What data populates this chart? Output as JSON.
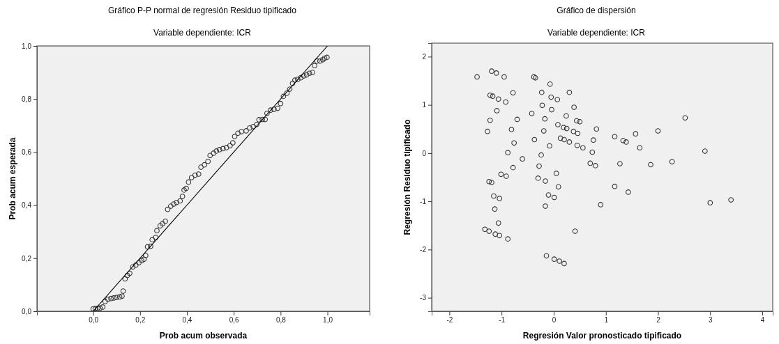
{
  "chart_data": [
    {
      "type": "scatter",
      "title": "Gráfico P-P normal de regresión Residuo tipificado",
      "subtitle": "Variable dependiente: ICR",
      "xlabel": "Prob acum observada",
      "ylabel": "Prob acum esperada",
      "marker": "circle",
      "xlim": [
        -0.24,
        1.18
      ],
      "ylim": [
        0,
        1
      ],
      "xticks": [
        {
          "value": 0,
          "label": "0,0"
        },
        {
          "value": 0.2,
          "label": "0,2"
        },
        {
          "value": 0.4,
          "label": "0,4"
        },
        {
          "value": 0.6,
          "label": "0,6"
        },
        {
          "value": 0.8,
          "label": "0,8"
        },
        {
          "value": 1,
          "label": "1,0"
        }
      ],
      "yticks": [
        {
          "value": 0,
          "label": "0,0"
        },
        {
          "value": 0.2,
          "label": "0,2"
        },
        {
          "value": 0.4,
          "label": "0,4"
        },
        {
          "value": 0.6,
          "label": "0,6"
        },
        {
          "value": 0.8,
          "label": "0,8"
        },
        {
          "value": 1,
          "label": "1,0"
        }
      ],
      "series": [
        {
          "color": "#333333",
          "x": [
            0,
            0.009,
            0.019,
            0.029,
            0.041,
            0.051,
            0.063,
            0.076,
            0.088,
            0.1,
            0.113,
            0.123,
            0.128,
            0.136,
            0.146,
            0.156,
            0.169,
            0.182,
            0.195,
            0.207,
            0.217,
            0.224,
            0.232,
            0.245,
            0.252,
            0.267,
            0.272,
            0.286,
            0.296,
            0.308,
            0.318,
            0.331,
            0.344,
            0.356,
            0.371,
            0.381,
            0.388,
            0.397,
            0.407,
            0.42,
            0.435,
            0.45,
            0.46,
            0.475,
            0.49,
            0.499,
            0.514,
            0.526,
            0.539,
            0.554,
            0.569,
            0.584,
            0.596,
            0.604,
            0.618,
            0.633,
            0.653,
            0.668,
            0.683,
            0.698,
            0.708,
            0.722,
            0.734,
            0.742,
            0.757,
            0.772,
            0.787,
            0.8,
            0.812,
            0.827,
            0.839,
            0.851,
            0.861,
            0.873,
            0.886,
            0.899,
            0.911,
            0.923,
            0.936,
            0.945,
            0.955,
            0.968,
            0.98,
            0.988,
            0.998
          ],
          "values": [
            0.009,
            0.01,
            0.011,
            0.012,
            0.016,
            0.037,
            0.045,
            0.048,
            0.05,
            0.052,
            0.054,
            0.057,
            0.076,
            0.122,
            0.135,
            0.143,
            0.167,
            0.174,
            0.183,
            0.191,
            0.196,
            0.21,
            0.243,
            0.245,
            0.27,
            0.278,
            0.304,
            0.322,
            0.33,
            0.339,
            0.384,
            0.396,
            0.404,
            0.41,
            0.416,
            0.433,
            0.457,
            0.463,
            0.487,
            0.504,
            0.513,
            0.517,
            0.543,
            0.552,
            0.565,
            0.587,
            0.596,
            0.604,
            0.609,
            0.613,
            0.617,
            0.624,
            0.635,
            0.659,
            0.671,
            0.677,
            0.68,
            0.691,
            0.696,
            0.704,
            0.722,
            0.723,
            0.723,
            0.746,
            0.758,
            0.761,
            0.765,
            0.783,
            0.81,
            0.822,
            0.837,
            0.859,
            0.871,
            0.874,
            0.88,
            0.887,
            0.891,
            0.897,
            0.9,
            0.926,
            0.943,
            0.943,
            0.948,
            0.954,
            0.957
          ]
        },
        {
          "type": "line",
          "color": "#000000",
          "marker": "none",
          "x": [
            0,
            1
          ],
          "values": [
            0,
            1
          ]
        }
      ]
    },
    {
      "type": "scatter",
      "title": "Gráfico de dispersión",
      "subtitle": "Variable dependiente: ICR",
      "xlabel": "Regresión Valor pronosticado tipificado",
      "ylabel": "Regresión Residuo tipificado",
      "marker": "circle",
      "xlim": [
        -2.34,
        4.2
      ],
      "ylim": [
        -3.28,
        2.28
      ],
      "xticks": [
        -2,
        -1,
        0,
        1,
        2,
        3,
        4
      ],
      "yticks": [
        -3,
        -2,
        -1,
        0,
        1,
        2
      ],
      "series": [
        {
          "color": "#333333",
          "x": [
            -1.47,
            -1.19,
            -1.1,
            -0.95,
            -0.38,
            -0.35,
            -0.07,
            -1.22,
            -1.17,
            -1.06,
            -0.92,
            -0.78,
            -0.23,
            -0.05,
            0.07,
            0.3,
            -1.09,
            -1.22,
            -0.7,
            -0.42,
            -0.22,
            -0.04,
            -0.17,
            0.24,
            0.39,
            0.44,
            0.5,
            -1.27,
            -0.81,
            -0.19,
            0.08,
            0.19,
            0.25,
            0.38,
            0.46,
            0.82,
            -0.37,
            -0.08,
            0.13,
            0.2,
            0.3,
            0.45,
            0.56,
            -0.76,
            -0.88,
            -0.6,
            -0.24,
            0.76,
            0.74,
            -0.78,
            -0.28,
            0.7,
            0.8,
            -1.01,
            -0.91,
            -0.3,
            -0.16,
            0.05,
            -1.24,
            -1.19,
            0.09,
            -1.15,
            -1.04,
            -0.1,
            0.01,
            -1.13,
            -0.16,
            0.9,
            -1.06,
            -1.32,
            -1.24,
            -1.12,
            -1.04,
            -0.88,
            0.41,
            -0.14,
            0.01,
            0.11,
            0.2,
            1.17,
            1.33,
            1.39,
            1.57,
            2,
            2.52,
            1.65,
            2.9,
            1.27,
            1.86,
            2.27,
            1.17,
            1.43,
            3,
            3.4
          ],
          "values": [
            1.58,
            1.7,
            1.66,
            1.58,
            1.58,
            1.56,
            1.43,
            1.2,
            1.18,
            1.12,
            1.06,
            1.25,
            1.26,
            1.16,
            1.11,
            1.26,
            0.88,
            0.68,
            0.7,
            0.82,
            0.99,
            0.9,
            0.71,
            0.77,
            0.95,
            0.67,
            0.65,
            0.45,
            0.49,
            0.46,
            0.59,
            0.53,
            0.51,
            0.45,
            0.41,
            0.5,
            0.28,
            0.15,
            0.31,
            0.28,
            0.23,
            0.16,
            0.11,
            0.21,
            0.01,
            -0.12,
            -0.04,
            0.27,
            0.02,
            -0.3,
            -0.27,
            -0.21,
            -0.26,
            -0.44,
            -0.48,
            -0.52,
            -0.58,
            -0.42,
            -0.59,
            -0.61,
            -0.7,
            -0.89,
            -0.94,
            -0.87,
            -0.92,
            -1.16,
            -1.1,
            -1.07,
            -1.45,
            -1.58,
            -1.62,
            -1.68,
            -1.71,
            -1.78,
            -1.62,
            -2.13,
            -2.2,
            -2.24,
            -2.29,
            0.34,
            0.26,
            0.23,
            0.4,
            0.46,
            0.73,
            0.11,
            0.04,
            -0.22,
            -0.24,
            -0.18,
            -0.69,
            -0.81,
            -1.03,
            -0.97
          ]
        }
      ]
    }
  ]
}
